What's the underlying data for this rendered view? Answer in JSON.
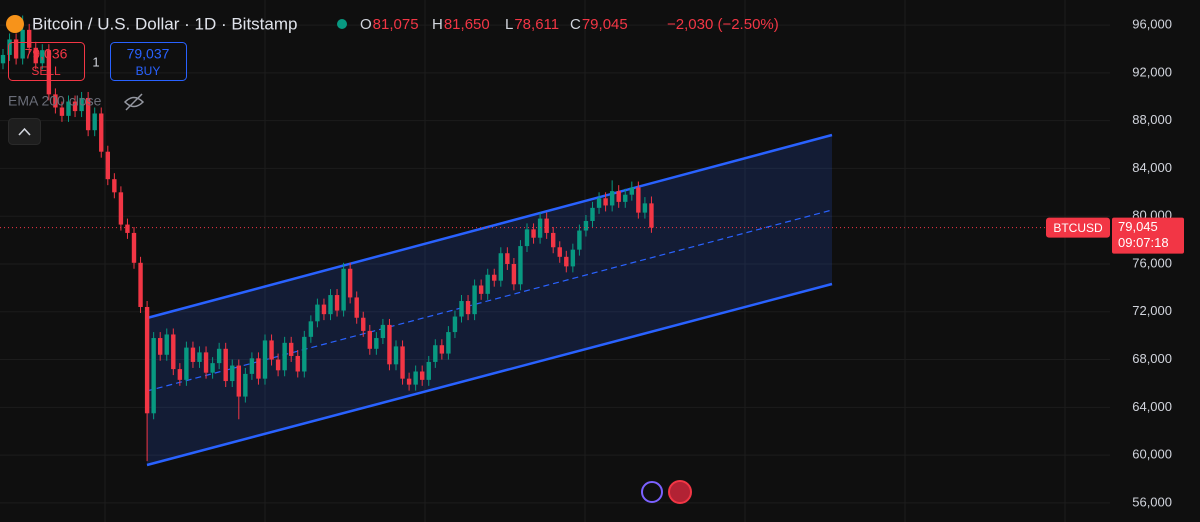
{
  "header": {
    "title": "Bitcoin / U.S. Dollar · 1D · Bitstamp",
    "ohlc": [
      {
        "key": "O",
        "label": "81,075"
      },
      {
        "key": "H",
        "label": "81,650"
      },
      {
        "key": "L",
        "label": "78,611"
      },
      {
        "key": "C",
        "label": "79,045"
      }
    ],
    "change": "−2,030 (−2.50%)",
    "sell": {
      "price": "79,036",
      "label": "SELL"
    },
    "quantity": "1",
    "buy": {
      "price": "79,037",
      "label": "BUY"
    },
    "indicator": "EMA 200 close"
  },
  "chart_data": {
    "type": "candlestick",
    "up_color": "#089981",
    "down_color": "#f23645",
    "grid": true,
    "ylim": [
      54400,
      98100
    ],
    "yticks": [
      {
        "value": 56000,
        "label": "56,000"
      },
      {
        "value": 60000,
        "label": "60,000"
      },
      {
        "value": 64000,
        "label": "64,000"
      },
      {
        "value": 68000,
        "label": "68,000"
      },
      {
        "value": 72000,
        "label": "72,000"
      },
      {
        "value": 76000,
        "label": "76,000"
      },
      {
        "value": 80000,
        "label": "80,000"
      },
      {
        "value": 84000,
        "label": "84,000"
      },
      {
        "value": 88000,
        "label": "88,000"
      },
      {
        "value": 92000,
        "label": "92,000"
      },
      {
        "value": 96000,
        "label": "96,000"
      }
    ],
    "last_price": {
      "symbol": "BTCUSD",
      "value": 79045,
      "label": "79,045",
      "countdown": "09:07:18"
    },
    "open": [
      92800,
      93500,
      94800,
      93200,
      95600,
      94100,
      92800,
      93900,
      90200,
      89100,
      88400,
      89600,
      88800,
      89900,
      87200,
      88600,
      85400,
      83100,
      82000,
      79300,
      78600,
      76100,
      72400,
      63500,
      69800,
      68400,
      70100,
      67200,
      66300,
      69000,
      67800,
      68600,
      66900,
      67700,
      68900,
      66200,
      67500,
      64900,
      66800,
      68100,
      66400,
      69600,
      68000,
      67100,
      69400,
      68300,
      67000,
      69900,
      71200,
      72600,
      71800,
      73400,
      72100,
      75600,
      73200,
      71500,
      70400,
      68900,
      69800,
      70900,
      67600,
      69100,
      66400,
      65900,
      67000,
      66300,
      67800,
      69200,
      68500,
      70300,
      71600,
      72900,
      71800,
      74200,
      73500,
      75100,
      74600,
      76900,
      76000,
      74300,
      77500,
      78900,
      78200,
      79800,
      78600,
      77400,
      76600,
      75800,
      77200,
      78800,
      79600,
      80700,
      81500,
      80900,
      82100,
      81200,
      81800,
      82400,
      80300,
      81075
    ],
    "high": [
      94000,
      95300,
      95300,
      96800,
      96100,
      94600,
      94400,
      94400,
      90700,
      89600,
      90100,
      90100,
      90400,
      90400,
      89100,
      89100,
      85900,
      83600,
      82500,
      79800,
      79100,
      76600,
      72900,
      70300,
      70300,
      70600,
      70600,
      67700,
      69500,
      69500,
      69100,
      69100,
      68200,
      69400,
      69400,
      68000,
      68000,
      67300,
      68600,
      68600,
      70100,
      70100,
      68500,
      69900,
      69900,
      68800,
      70400,
      71700,
      73100,
      73100,
      73900,
      73900,
      76100,
      76100,
      73700,
      72000,
      70900,
      70300,
      71400,
      71400,
      69600,
      69600,
      66900,
      67500,
      67500,
      68300,
      69700,
      69700,
      70800,
      72100,
      73400,
      73400,
      74700,
      74700,
      75600,
      75600,
      77400,
      77400,
      76500,
      78000,
      79400,
      79400,
      80300,
      80300,
      79100,
      77900,
      77100,
      77700,
      79300,
      80100,
      81200,
      82000,
      82000,
      83000,
      82600,
      82300,
      82900,
      82900,
      81600,
      81650
    ],
    "low": [
      92300,
      93000,
      92700,
      92700,
      93600,
      92300,
      92300,
      89700,
      88600,
      87900,
      87900,
      88300,
      88300,
      86700,
      86700,
      84900,
      82600,
      81500,
      78800,
      78100,
      75600,
      71900,
      59500,
      63000,
      67900,
      67900,
      66700,
      65800,
      65800,
      67300,
      67300,
      66400,
      66400,
      67200,
      65700,
      65700,
      63000,
      64400,
      66300,
      65900,
      65900,
      67500,
      66600,
      66600,
      67800,
      66500,
      66500,
      69400,
      70700,
      71300,
      71300,
      71600,
      71600,
      72700,
      71000,
      69900,
      68400,
      68400,
      69300,
      67100,
      67100,
      65900,
      65400,
      65400,
      65800,
      65800,
      67300,
      68000,
      68000,
      69800,
      71100,
      71300,
      71300,
      73000,
      73000,
      74100,
      74100,
      75500,
      73800,
      73800,
      77000,
      77700,
      77700,
      78100,
      76900,
      76100,
      75300,
      75300,
      76700,
      78300,
      79100,
      80200,
      80400,
      80400,
      80700,
      80700,
      81300,
      79800,
      79800,
      78611
    ],
    "close": [
      93500,
      94800,
      93200,
      95600,
      94100,
      92800,
      93900,
      90200,
      89100,
      88400,
      89600,
      88800,
      89900,
      87200,
      88600,
      85400,
      83100,
      82000,
      79300,
      78600,
      76100,
      72400,
      63500,
      69800,
      68400,
      70100,
      67200,
      66300,
      69000,
      67800,
      68600,
      66900,
      67700,
      68900,
      66200,
      67500,
      64900,
      66800,
      68100,
      66400,
      69600,
      68000,
      67100,
      69400,
      68300,
      67000,
      69900,
      71200,
      72600,
      71800,
      73400,
      72100,
      75600,
      73200,
      71500,
      70400,
      68900,
      69800,
      70900,
      67600,
      69100,
      66400,
      65900,
      67000,
      66300,
      67800,
      69200,
      68500,
      70300,
      71600,
      72900,
      71800,
      74200,
      73500,
      75100,
      74600,
      76900,
      76000,
      74300,
      77500,
      78900,
      78200,
      79800,
      78600,
      77400,
      76600,
      75800,
      77200,
      78800,
      79600,
      80700,
      81500,
      80900,
      82100,
      81200,
      81800,
      82400,
      80300,
      81075,
      79045
    ]
  }
}
